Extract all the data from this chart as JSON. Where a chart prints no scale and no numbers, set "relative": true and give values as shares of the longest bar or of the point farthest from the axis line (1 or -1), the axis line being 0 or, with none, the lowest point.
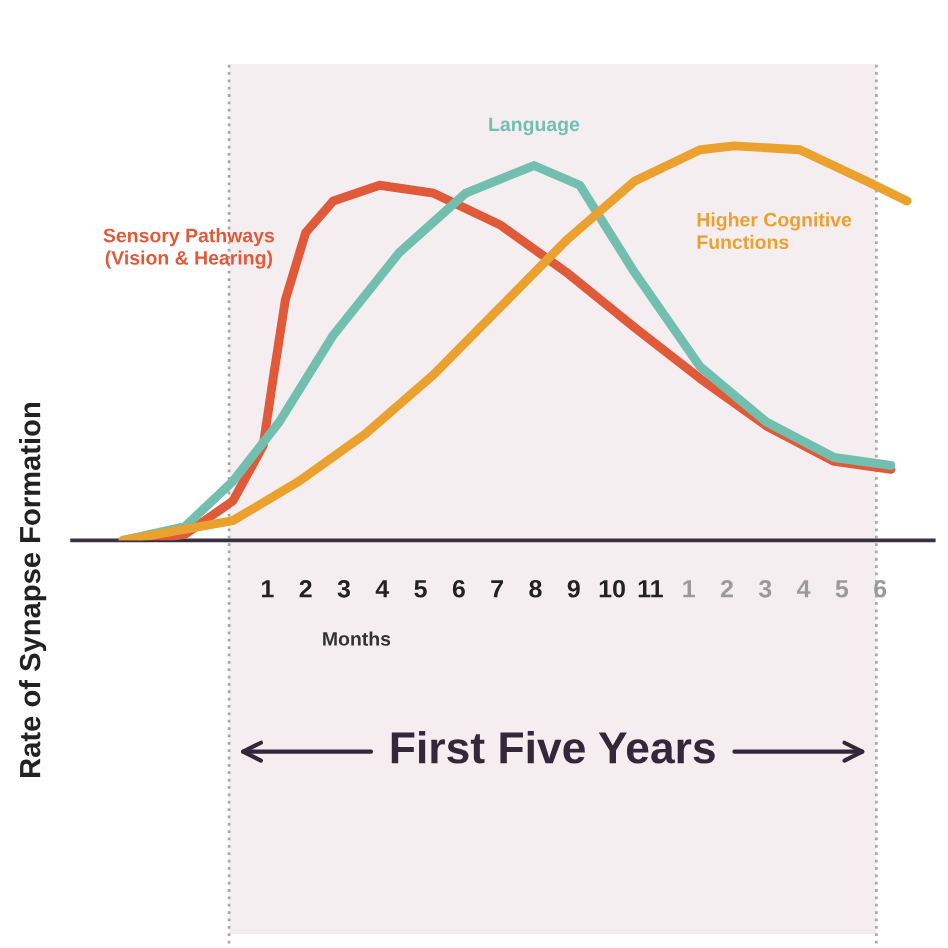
{
  "chart_data": {
    "type": "line",
    "relative": true,
    "xlabel": "Months",
    "ylabel": "Rate of Synapse Formation",
    "xlim": [
      -4.1,
      18.4
    ],
    "xticks": [
      1,
      2,
      3,
      4,
      5,
      6,
      7,
      8,
      9,
      10,
      11
    ],
    "x2lim": [
      -15.1,
      7.4
    ],
    "x2ticks": [
      1,
      2,
      3,
      4,
      5,
      6
    ],
    "grid": false,
    "legend": false,
    "marker": "none",
    "line_style": "solid",
    "ref_lines": [
      {
        "axis": "x",
        "value": 0,
        "color": "#aaaaaa",
        "line_style": "dotted"
      },
      {
        "axis": "x",
        "value": 16.9,
        "color": "#aaaaaa",
        "line_style": "dotted"
      }
    ],
    "bands": [
      {
        "axis": "x",
        "from": 0,
        "to": 16.9,
        "color": "#f4eef0"
      }
    ],
    "annotations": [
      "First Five Years"
    ],
    "series": [
      {
        "name": "Sensory Pathways\n(Vision & Hearing)",
        "color": "#e05a3a",
        "x": [
          -2.25,
          -1.15,
          0.1,
          0.89,
          1.15,
          1.47,
          2.0,
          2.72,
          3.93,
          5.34,
          7.07,
          8.8,
          10.58,
          12.3,
          14.03,
          15.8,
          17.28
        ],
        "values": [
          0,
          0.015,
          0.1,
          0.24,
          0.41,
          0.61,
          0.78,
          0.86,
          0.9,
          0.88,
          0.8,
          0.68,
          0.54,
          0.41,
          0.29,
          0.2,
          0.18
        ]
      },
      {
        "name": "Language",
        "color": "#72bfb0",
        "x": [
          -2.77,
          -1.15,
          0.1,
          1.31,
          2.72,
          4.45,
          6.18,
          7.96,
          9.16,
          10.58,
          12.3,
          14.03,
          15.8,
          17.28
        ],
        "values": [
          0,
          0.035,
          0.15,
          0.3,
          0.52,
          0.73,
          0.88,
          0.95,
          0.9,
          0.68,
          0.44,
          0.3,
          0.21,
          0.19
        ]
      },
      {
        "name": "Higher Cognitive\nFunctions",
        "color": "#eba12e",
        "x": [
          -2.77,
          0.1,
          1.83,
          3.56,
          5.34,
          7.07,
          8.8,
          10.58,
          12.3,
          13.19,
          14.9,
          16.65,
          17.7
        ],
        "values": [
          0,
          0.05,
          0.15,
          0.27,
          0.42,
          0.59,
          0.76,
          0.91,
          0.99,
          1.0,
          0.99,
          0.91,
          0.86
        ]
      }
    ]
  }
}
